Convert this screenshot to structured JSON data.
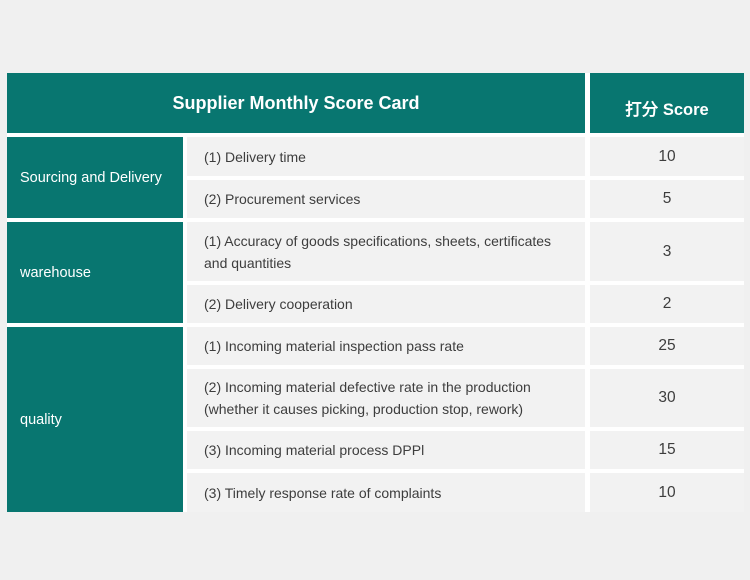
{
  "header": {
    "title": "Supplier Monthly Score Card",
    "score_label": "打分 Score"
  },
  "categories": [
    {
      "name": "Sourcing and Delivery"
    },
    {
      "name": "warehouse"
    },
    {
      "name": "quality"
    }
  ],
  "rows": [
    {
      "item": "(1) Delivery time",
      "score": "10"
    },
    {
      "item": "(2) Procurement services",
      "score": "5"
    },
    {
      "item": "(1) Accuracy of goods specifications, sheets, certificates and quantities",
      "score": "3"
    },
    {
      "item": "(2) Delivery cooperation",
      "score": "2"
    },
    {
      "item": "(1) Incoming material inspection pass rate",
      "score": "25"
    },
    {
      "item": "(2) Incoming material defective rate in the production (whether it causes picking, production stop, rework)",
      "score": "30"
    },
    {
      "item": "(3) Incoming material process DPPl",
      "score": "15"
    },
    {
      "item": "(3) Timely response rate of complaints",
      "score": "10"
    }
  ],
  "colors": {
    "accent": "#087670",
    "row_background": "#f2f2f2",
    "page_background": "#f0f0f0"
  }
}
